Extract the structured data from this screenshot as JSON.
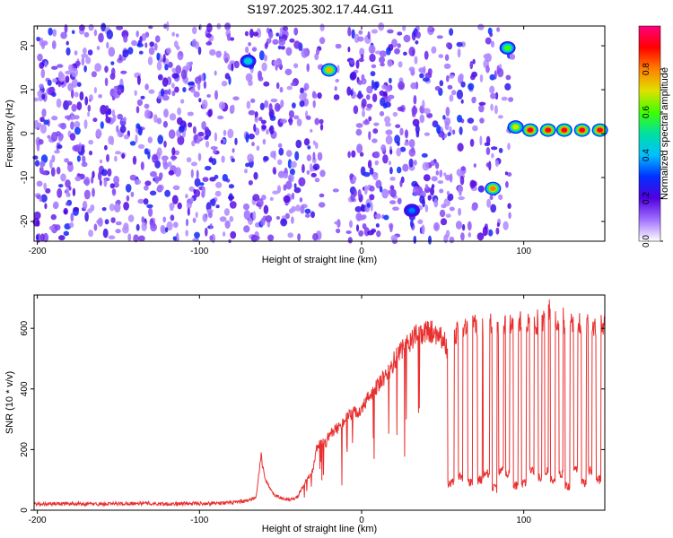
{
  "title": "S197.2025.302.17.44.G11",
  "chart_data": [
    {
      "type": "heatmap",
      "xlabel": "Height of straight line (km)",
      "ylabel": "Frequency (Hz)",
      "xlim": [
        -202,
        150
      ],
      "ylim": [
        -24.5,
        24.5
      ],
      "xticks": [
        -200,
        -100,
        0,
        100
      ],
      "yticks": [
        -20,
        -10,
        0,
        10,
        20
      ],
      "colorbar": {
        "label": "Normalized spectral amplitude",
        "range": [
          0,
          1
        ],
        "ticks": [
          0.0,
          0.2,
          0.4,
          0.6,
          0.8
        ],
        "colors": [
          "#ffffff",
          "#a070ff",
          "#5000e0",
          "#0030ff",
          "#00c0ff",
          "#00e0a0",
          "#40ff00",
          "#e0e000",
          "#ff8000",
          "#ff0000",
          "#ff0080"
        ]
      },
      "blank_columns": [
        [
          -77,
          -72
        ],
        [
          -24,
          -16
        ],
        [
          -14,
          -8
        ],
        [
          28,
          30
        ],
        [
          57,
          60
        ],
        [
          63,
          66
        ],
        [
          70,
          73
        ],
        [
          86,
          88
        ],
        [
          93,
          150
        ]
      ],
      "hotspots": [
        {
          "x": -70,
          "f": 16.5,
          "level": 0.45
        },
        {
          "x": -20,
          "f": 14.5,
          "level": 0.75
        },
        {
          "x": 31,
          "f": -17.5,
          "level": 0.35
        },
        {
          "x": 81,
          "f": -12.5,
          "level": 0.8
        },
        {
          "x": 90,
          "f": 19.5,
          "level": 0.6
        },
        {
          "x": 95,
          "f": 1.5,
          "level": 0.7
        },
        {
          "x": 104,
          "f": 0.8,
          "level": 0.92
        },
        {
          "x": 115,
          "f": 0.8,
          "level": 0.92
        },
        {
          "x": 125,
          "f": 0.8,
          "level": 0.92
        },
        {
          "x": 136,
          "f": 0.8,
          "level": 0.92
        },
        {
          "x": 147,
          "f": 0.8,
          "level": 0.92
        }
      ]
    },
    {
      "type": "line",
      "xlabel": "Height of straight line (km)",
      "ylabel": "SNR (10 * v/v)",
      "xlim": [
        -202,
        150
      ],
      "ylim": [
        0,
        710
      ],
      "xticks": [
        -200,
        -100,
        0,
        100
      ],
      "yticks": [
        0,
        200,
        400,
        600
      ],
      "color": "#e83030",
      "series": [
        {
          "x": [
            -202,
            -180,
            -160,
            -140,
            -120,
            -100,
            -80,
            -70,
            -65,
            -62,
            -60,
            -58,
            -55,
            -50,
            -45,
            -40,
            -35,
            -30,
            -28,
            -25,
            -22,
            -20,
            -15,
            -10,
            -5,
            0,
            5,
            10,
            15,
            20,
            25,
            30,
            35,
            40,
            45,
            50,
            52,
            55,
            58,
            60,
            70,
            80,
            90,
            100,
            110,
            115,
            120,
            130,
            140,
            150
          ],
          "y": [
            20,
            22,
            20,
            23,
            21,
            22,
            25,
            30,
            45,
            180,
            110,
            90,
            55,
            40,
            35,
            40,
            90,
            130,
            200,
            230,
            220,
            250,
            270,
            300,
            320,
            330,
            380,
            410,
            440,
            490,
            530,
            560,
            580,
            590,
            590,
            570,
            540,
            500,
            580,
            600,
            610,
            615,
            620,
            620,
            620,
            660,
            630,
            620,
            610,
            600
          ],
          "dips": [
            {
              "x": 55,
              "w": 2,
              "to": 90
            },
            {
              "x": 61,
              "w": 1.5,
              "to": 110
            },
            {
              "x": 67,
              "w": 1.5,
              "to": 90
            },
            {
              "x": 73,
              "w": 1.5,
              "to": 100
            },
            {
              "x": 77,
              "w": 2,
              "to": 120
            },
            {
              "x": 82,
              "w": 1.5,
              "to": 70
            },
            {
              "x": 86,
              "w": 1.5,
              "to": 130
            },
            {
              "x": 90,
              "w": 1.2,
              "to": 120
            },
            {
              "x": 95,
              "w": 1.5,
              "to": 80
            },
            {
              "x": 100,
              "w": 1.5,
              "to": 90
            },
            {
              "x": 105,
              "w": 1.5,
              "to": 130
            },
            {
              "x": 110,
              "w": 1.2,
              "to": 110
            },
            {
              "x": 114,
              "w": 1.2,
              "to": 130
            },
            {
              "x": 118,
              "w": 1.5,
              "to": 100
            },
            {
              "x": 123,
              "w": 1.2,
              "to": 120
            },
            {
              "x": 127,
              "w": 1.5,
              "to": 80
            },
            {
              "x": 132,
              "w": 1.2,
              "to": 140
            },
            {
              "x": 137,
              "w": 1.5,
              "to": 90
            },
            {
              "x": 141,
              "w": 1.2,
              "to": 130
            },
            {
              "x": 146,
              "w": 1.5,
              "to": 100
            }
          ]
        }
      ]
    }
  ]
}
